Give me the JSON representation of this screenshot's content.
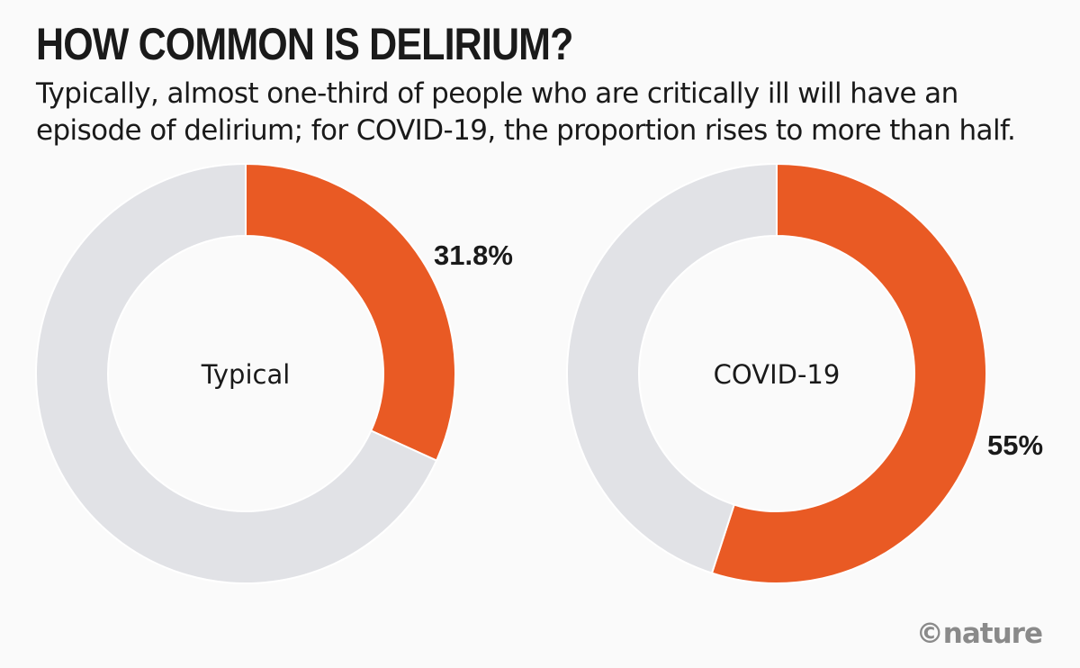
{
  "title": "HOW COMMON IS DELIRIUM?",
  "subtitle": "Typically, almost one-third of people who are critically ill will have an episode of delirium; for COVID-19, the proportion rises to more than half.",
  "credit": "©nature",
  "colors": {
    "highlight": "#e95a24",
    "remainder": "#e1e2e6",
    "text": "#1a1a1a"
  },
  "chart_data": [
    {
      "type": "pie",
      "variant": "donut",
      "center_label": "Typical",
      "slices": [
        {
          "label": "31.8%",
          "value": 31.8,
          "color": "#e95a24"
        },
        {
          "label": "",
          "value": 68.2,
          "color": "#e1e2e6"
        }
      ]
    },
    {
      "type": "pie",
      "variant": "donut",
      "center_label": "COVID-19",
      "slices": [
        {
          "label": "55%",
          "value": 55,
          "color": "#e95a24"
        },
        {
          "label": "",
          "value": 45,
          "color": "#e1e2e6"
        }
      ]
    }
  ]
}
